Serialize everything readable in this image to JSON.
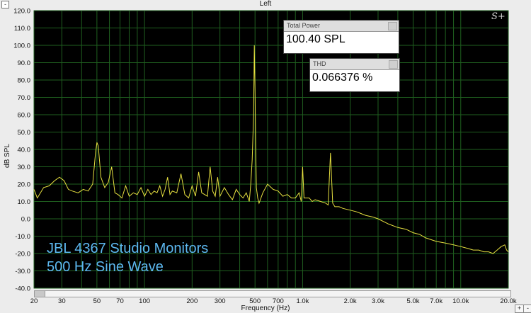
{
  "window": {
    "title": "Left"
  },
  "overlay": {
    "line1": "JBL 4367 Studio Monitors",
    "line2": "500 Hz Sine Wave"
  },
  "meters": {
    "total_power": {
      "label": "Total Power",
      "value": "100.40 SPL"
    },
    "thd": {
      "label": "THD",
      "value": "0.066376 %"
    }
  },
  "logo": "S+",
  "buttons": {
    "collapse": "-",
    "zoom_in": "+",
    "zoom_out": "-"
  },
  "colors": {
    "background": "#000000",
    "grid": "#1f5f1f",
    "trace": "#e6e040",
    "overlay_text": "#5db8f0"
  },
  "chart_data": {
    "type": "line",
    "xlabel": "Frequency (Hz)",
    "ylabel": "dB SPL",
    "xscale": "log",
    "xlim": [
      20,
      20000
    ],
    "ylim": [
      -40,
      120
    ],
    "y_ticks": [
      "120.0",
      "110.0",
      "100.0",
      "90.0",
      "80.0",
      "70.0",
      "60.0",
      "50.0",
      "40.0",
      "30.0",
      "20.0",
      "10.0",
      "0.0",
      "-10.0",
      "-20.0",
      "-30.0",
      "-40.0"
    ],
    "x_ticks": [
      {
        "v": 20,
        "label": "20"
      },
      {
        "v": 30,
        "label": "30"
      },
      {
        "v": 50,
        "label": "50"
      },
      {
        "v": 70,
        "label": "70"
      },
      {
        "v": 100,
        "label": "100"
      },
      {
        "v": 200,
        "label": "200"
      },
      {
        "v": 300,
        "label": "300"
      },
      {
        "v": 500,
        "label": "500"
      },
      {
        "v": 700,
        "label": "700"
      },
      {
        "v": 1000,
        "label": "1.0k"
      },
      {
        "v": 2000,
        "label": "2.0k"
      },
      {
        "v": 3000,
        "label": "3.0k"
      },
      {
        "v": 5000,
        "label": "5.0k"
      },
      {
        "v": 7000,
        "label": "7.0k"
      },
      {
        "v": 10000,
        "label": "10.0k"
      },
      {
        "v": 20000,
        "label": "20.0k"
      }
    ],
    "grid": true,
    "series": [
      {
        "x": [
          20,
          21,
          23,
          25,
          27,
          29,
          31,
          33,
          35,
          38,
          41,
          44,
          47,
          49,
          50,
          51,
          53,
          56,
          59,
          62,
          65,
          68,
          72,
          76,
          80,
          85,
          90,
          95,
          100,
          105,
          110,
          115,
          120,
          125,
          130,
          135,
          140,
          145,
          150,
          160,
          170,
          180,
          190,
          200,
          210,
          220,
          230,
          240,
          250,
          260,
          270,
          280,
          290,
          300,
          320,
          340,
          360,
          380,
          400,
          420,
          440,
          460,
          470,
          480,
          490,
          495,
          500,
          505,
          510,
          520,
          530,
          560,
          600,
          650,
          700,
          750,
          800,
          850,
          900,
          950,
          980,
          1000,
          1020,
          1050,
          1100,
          1150,
          1200,
          1300,
          1400,
          1450,
          1500,
          1550,
          1600,
          1700,
          1800,
          2000,
          2200,
          2500,
          2800,
          3000,
          3500,
          4000,
          4500,
          5000,
          5500,
          6000,
          7000,
          8000,
          9000,
          10000,
          11000,
          12000,
          13000,
          14000,
          15000,
          16000,
          17000,
          18000,
          19000,
          19500,
          20000
        ],
        "y": [
          17,
          12,
          18,
          19,
          22,
          24,
          22,
          17,
          16,
          15,
          17,
          16,
          20,
          38,
          44,
          42,
          24,
          18,
          21,
          30,
          15,
          14,
          12,
          19,
          13,
          15,
          14,
          18,
          13,
          17,
          14,
          16,
          15,
          19,
          13,
          17,
          24,
          14,
          16,
          15,
          26,
          14,
          12,
          19,
          13,
          27,
          15,
          14,
          13,
          30,
          16,
          13,
          24,
          13,
          18,
          14,
          11,
          17,
          14,
          12,
          15,
          10,
          20,
          34,
          60,
          100,
          75,
          40,
          18,
          12,
          9,
          15,
          20,
          17,
          16,
          13,
          14,
          12,
          12,
          15,
          10,
          30,
          12,
          12,
          12,
          10,
          11,
          10,
          9,
          8,
          38,
          9,
          7,
          7,
          6,
          5,
          4,
          2,
          1,
          0,
          -3,
          -5,
          -6,
          -8,
          -9,
          -11,
          -13,
          -14,
          -15,
          -16,
          -17,
          -18,
          -18,
          -19,
          -19,
          -20,
          -18,
          -16,
          -15,
          -18,
          -19
        ]
      }
    ]
  }
}
